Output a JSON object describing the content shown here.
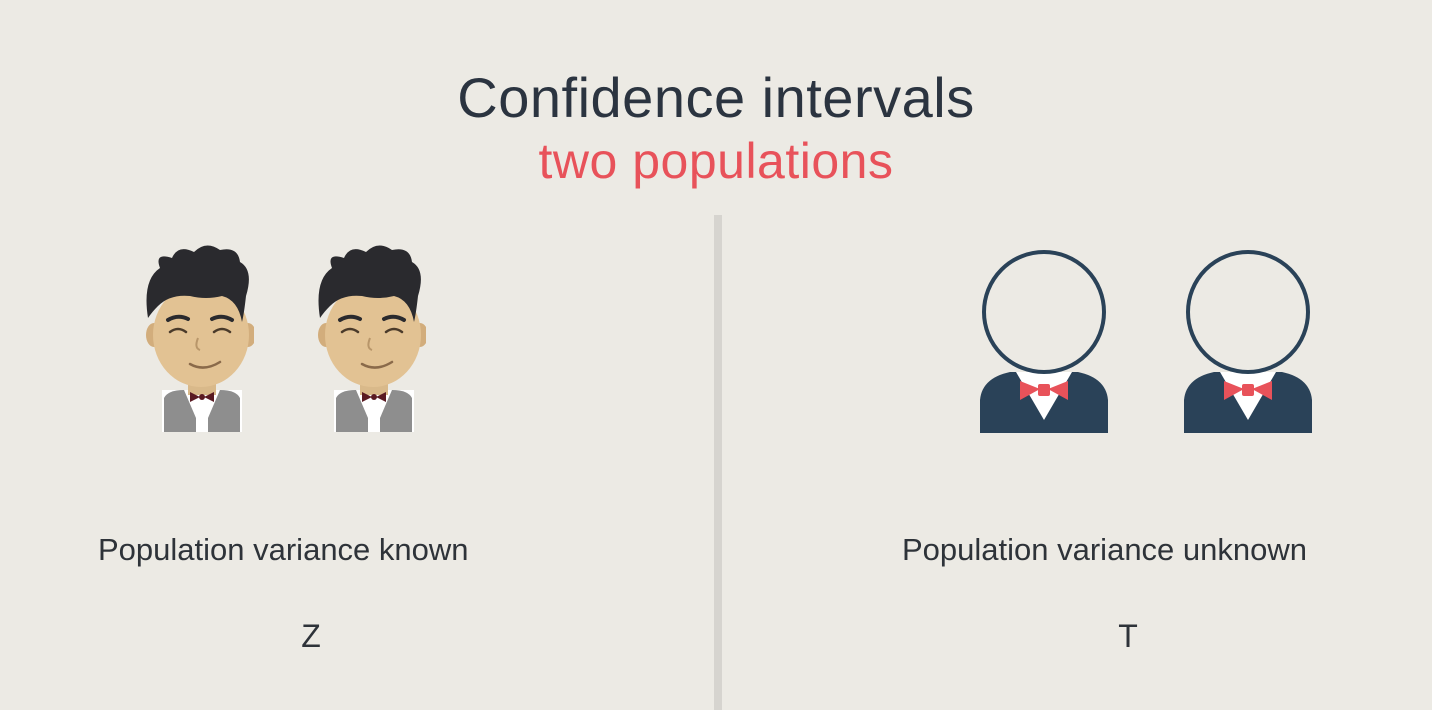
{
  "header": {
    "title": "Confidence intervals",
    "subtitle": "two populations"
  },
  "left": {
    "label": "Population variance known",
    "statistic": "Z",
    "icons": [
      "person-cartoon-icon",
      "person-cartoon-icon"
    ]
  },
  "right": {
    "label": "Population variance unknown",
    "statistic": "T",
    "icons": [
      "person-outline-icon",
      "person-outline-icon"
    ]
  },
  "colors": {
    "background": "#eceae4",
    "title": "#2b3440",
    "accent": "#e8525a",
    "divider": "#d6d4cf",
    "suit": "#2a4258"
  }
}
